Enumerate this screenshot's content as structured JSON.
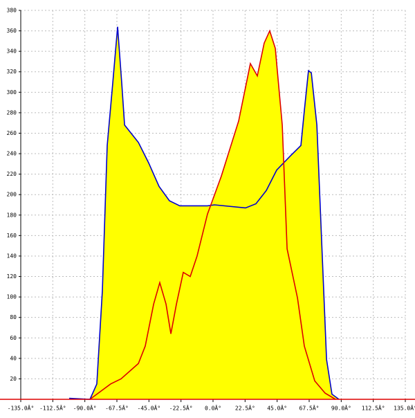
{
  "chart_data": {
    "type": "area-line",
    "xlim": [
      -135,
      135
    ],
    "ylim": [
      0,
      380
    ],
    "xticks": [
      {
        "value": -135,
        "label": "-135.0Â°"
      },
      {
        "value": -112.5,
        "label": "-112.5Â°"
      },
      {
        "value": -90,
        "label": "-90.0Â°"
      },
      {
        "value": -67.5,
        "label": "-67.5Â°"
      },
      {
        "value": -45,
        "label": "-45.0Â°"
      },
      {
        "value": -22.5,
        "label": "-22.5Â°"
      },
      {
        "value": 0,
        "label": "0.0Â°"
      },
      {
        "value": 22.5,
        "label": "22.5Â°"
      },
      {
        "value": 45,
        "label": "45.0Â°"
      },
      {
        "value": 67.5,
        "label": "67.5Â°"
      },
      {
        "value": 90,
        "label": "90.0Â°"
      },
      {
        "value": 112.5,
        "label": "112.5Â°"
      },
      {
        "value": 135,
        "label": "135.0Â°"
      }
    ],
    "yticks": [
      20,
      40,
      60,
      80,
      100,
      120,
      140,
      160,
      180,
      200,
      220,
      240,
      260,
      280,
      300,
      320,
      340,
      360,
      380
    ],
    "grid": true,
    "fill_color": "#ffff00",
    "axis_color": "#dd0000",
    "series": [
      {
        "color": "#0000cc",
        "x": [
          -101,
          -86.4,
          -81.6,
          -77.7,
          -74.3,
          -70.4,
          -67,
          -64.1,
          -62.1,
          -52.4,
          -45.2,
          -37.9,
          -30.6,
          -23.3,
          -3.9,
          1,
          22.8,
          30.1,
          37.4,
          44.7,
          54.4,
          61.7,
          64.1,
          67,
          69,
          72.9,
          76.3,
          79.7,
          83.5,
          88.4
        ],
        "values": [
          1,
          0,
          15,
          106,
          248,
          309,
          364,
          309,
          268,
          251,
          231,
          208,
          194,
          189,
          189,
          190,
          187,
          191,
          204,
          224,
          238,
          248,
          282,
          321,
          319,
          268,
          153,
          39,
          5,
          0
        ]
      },
      {
        "color": "#dd0000",
        "x": [
          -86.4,
          -81.6,
          -71.9,
          -64.6,
          -52.4,
          -47.6,
          -41.7,
          -37.4,
          -33,
          -29.6,
          -25.7,
          -20.9,
          -16,
          -11.2,
          -3.9,
          5.8,
          18,
          26.2,
          31.1,
          35.9,
          39.8,
          43.7,
          48.6,
          52,
          59.3,
          64.1,
          71.4,
          78.7,
          86
        ],
        "values": [
          0,
          5,
          15,
          20,
          35,
          52,
          93,
          114,
          93,
          64,
          93,
          124,
          120,
          140,
          181,
          218,
          272,
          328,
          316,
          348,
          360,
          343,
          268,
          147,
          99,
          52,
          18,
          6,
          0
        ]
      }
    ]
  }
}
